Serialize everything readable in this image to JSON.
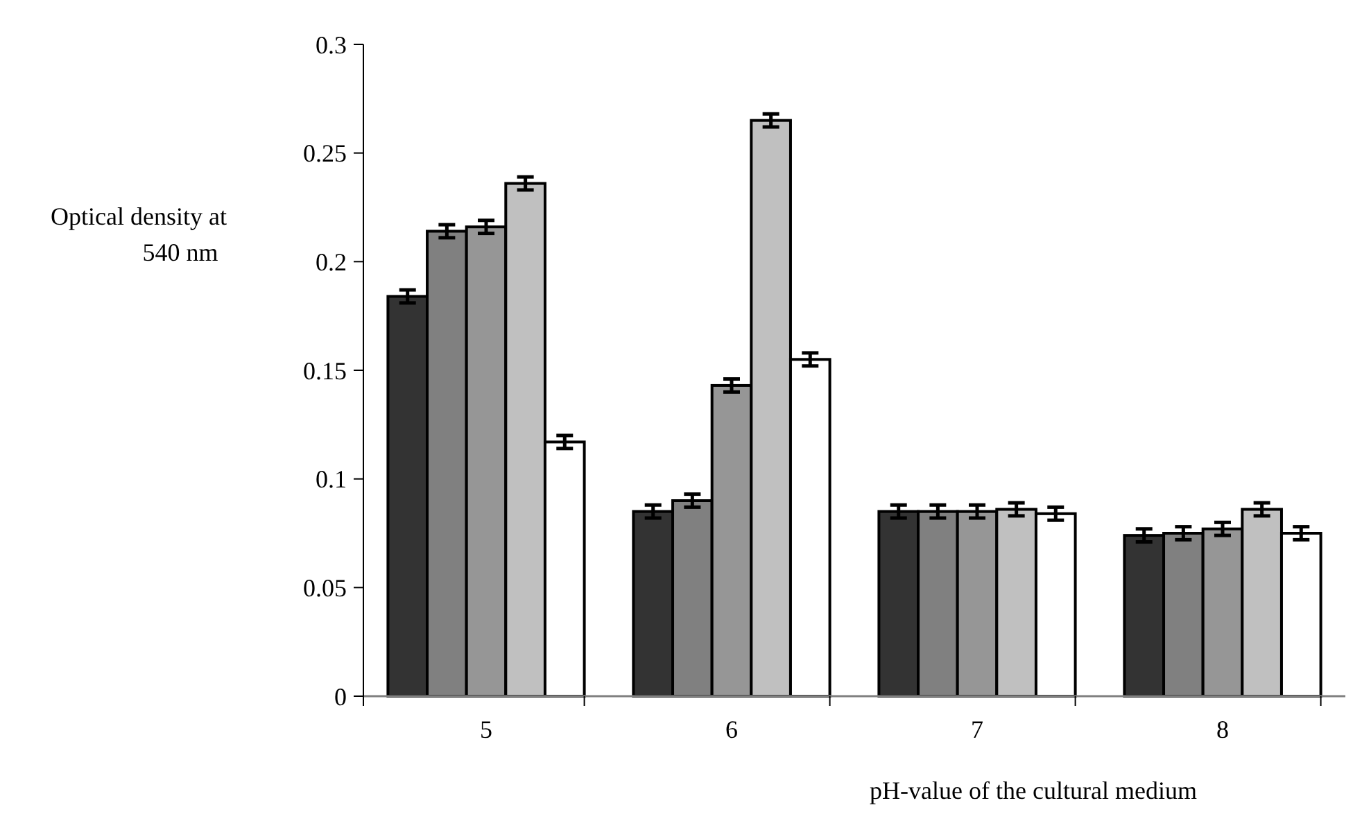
{
  "chart_data": {
    "type": "bar",
    "ylabel": "Optical density at\n540 nm",
    "xlabel": "pH-value of the cultural medium",
    "categories": [
      "5",
      "6",
      "7",
      "8"
    ],
    "series": [
      {
        "color": "#333333",
        "values": [
          0.184,
          0.085,
          0.085,
          0.074
        ],
        "errors": [
          0.003,
          0.003,
          0.003,
          0.003
        ]
      },
      {
        "color": "#808080",
        "values": [
          0.214,
          0.09,
          0.085,
          0.075
        ],
        "errors": [
          0.003,
          0.003,
          0.003,
          0.003
        ]
      },
      {
        "color": "#969696",
        "values": [
          0.216,
          0.143,
          0.085,
          0.077
        ],
        "errors": [
          0.003,
          0.003,
          0.003,
          0.003
        ]
      },
      {
        "color": "#c0c0c0",
        "values": [
          0.236,
          0.265,
          0.086,
          0.086
        ],
        "errors": [
          0.003,
          0.003,
          0.003,
          0.003
        ]
      },
      {
        "color": "#ffffff",
        "values": [
          0.117,
          0.155,
          0.084,
          0.075
        ],
        "errors": [
          0.003,
          0.003,
          0.003,
          0.003
        ]
      }
    ],
    "ylim": [
      0,
      0.3
    ],
    "yticks": [
      0,
      0.05,
      0.1,
      0.15,
      0.2,
      0.25,
      0.3
    ],
    "grid": false
  }
}
